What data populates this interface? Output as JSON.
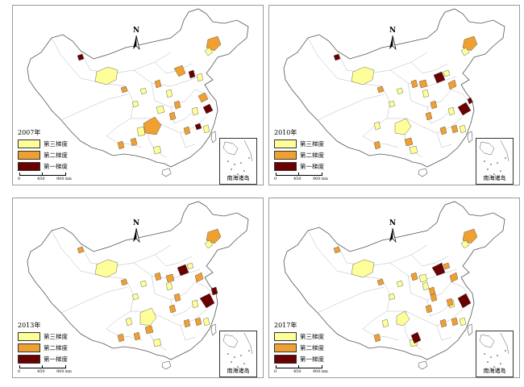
{
  "colors": {
    "third": "#ffff99",
    "second": "#f0a030",
    "first": "#6b0000",
    "outline": "#555555",
    "inner_border": "#b8b8b8"
  },
  "compass_letter": "N",
  "inset_label": "南海诸岛",
  "scale": {
    "zero": "0",
    "mid": "450",
    "end": "900 km"
  },
  "panels": [
    {
      "year": "2007年",
      "legend": [
        {
          "label": "第三梯度",
          "tier": "third"
        },
        {
          "label": "第二梯度",
          "tier": "second"
        },
        {
          "label": "第一梯度",
          "tier": "first"
        }
      ]
    },
    {
      "year": "2010年",
      "legend": [
        {
          "label": "第三梯度",
          "tier": "third"
        },
        {
          "label": "第二梯度",
          "tier": "second"
        },
        {
          "label": "第一梯度",
          "tier": "first"
        }
      ]
    },
    {
      "year": "2013年",
      "legend": [
        {
          "label": "第三梯度",
          "tier": "third"
        },
        {
          "label": "第二梯度",
          "tier": "second"
        },
        {
          "label": "第一梯度",
          "tier": "first"
        }
      ]
    },
    {
      "year": "2017年",
      "legend": [
        {
          "label": "第三梯度",
          "tier": "third"
        },
        {
          "label": "第二梯度",
          "tier": "second"
        },
        {
          "label": "第一梯度",
          "tier": "first"
        }
      ]
    }
  ]
}
